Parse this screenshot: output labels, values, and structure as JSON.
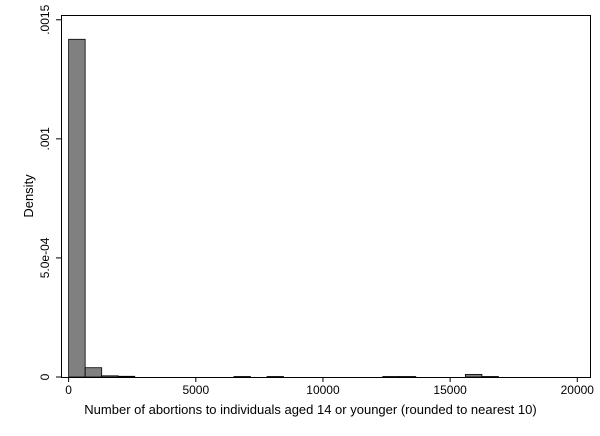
{
  "chart_data": {
    "type": "bar",
    "title": "",
    "xlabel": "Number of abortions to individuals aged 14 or younger (rounded to nearest 10)",
    "ylabel": "Density",
    "xlim": [
      -300,
      20500
    ],
    "ylim": [
      0,
      0.00152
    ],
    "x_ticks": [
      0,
      5000,
      10000,
      15000,
      20000
    ],
    "x_tick_labels": [
      "0",
      "5000",
      "10000",
      "15000",
      "20000"
    ],
    "y_ticks": [
      0,
      0.0005,
      0.001,
      0.0015
    ],
    "y_tick_labels": [
      "0",
      "5.0e-04",
      ".001",
      ".0015"
    ],
    "bin_width": 650,
    "bins": [
      {
        "x0": 0,
        "x1": 650,
        "density": 0.001418
      },
      {
        "x0": 650,
        "x1": 1300,
        "density": 3.9e-05
      },
      {
        "x0": 1300,
        "x1": 1950,
        "density": 5e-06
      },
      {
        "x0": 1950,
        "x1": 2600,
        "density": 3e-06
      },
      {
        "x0": 6500,
        "x1": 7150,
        "density": 2e-06
      },
      {
        "x0": 7800,
        "x1": 8450,
        "density": 2e-06
      },
      {
        "x0": 12350,
        "x1": 13000,
        "density": 2e-06
      },
      {
        "x0": 13000,
        "x1": 13650,
        "density": 2e-06
      },
      {
        "x0": 15600,
        "x1": 16250,
        "density": 1.1e-05
      },
      {
        "x0": 16250,
        "x1": 16900,
        "density": 2e-06
      }
    ],
    "grid": false,
    "legend": "none",
    "colors": {
      "bar_fill": "#808080",
      "bar_stroke": "#000000",
      "axis": "#000000",
      "background": "#ffffff"
    }
  }
}
